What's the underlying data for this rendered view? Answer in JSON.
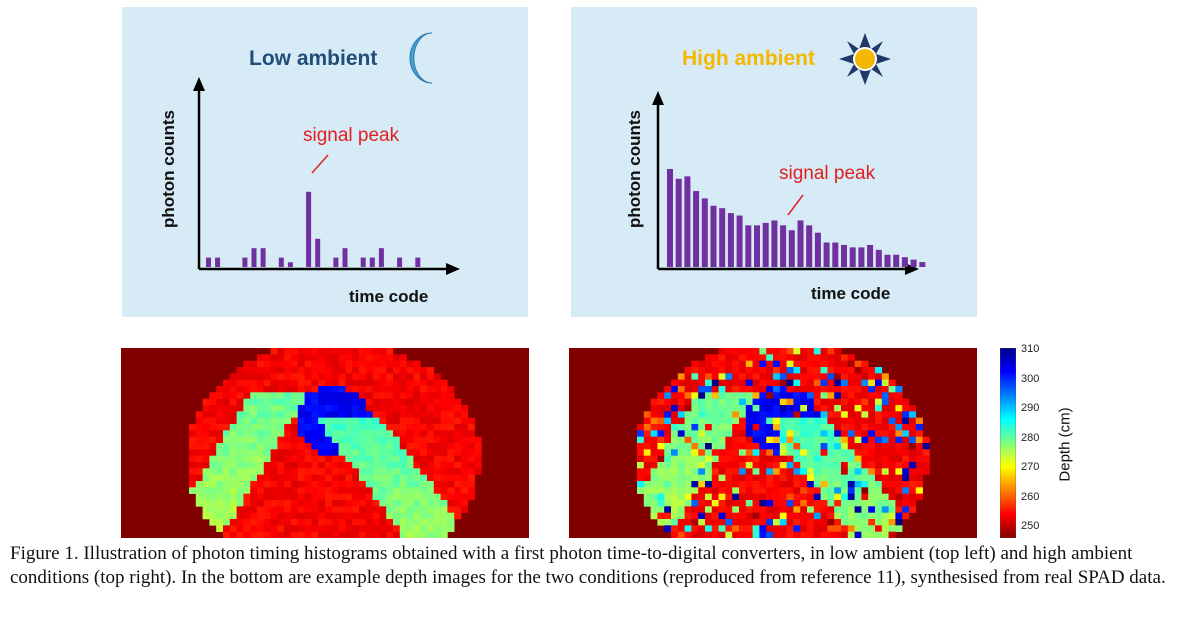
{
  "chart_data": [
    {
      "type": "bar",
      "title": "Low ambient",
      "ylabel": "photon counts",
      "xlabel": "time code",
      "annotation": "signal peak",
      "values": [
        2,
        2,
        0,
        0,
        2,
        4,
        4,
        0,
        2,
        1,
        0,
        16,
        6,
        0,
        2,
        4,
        0,
        2,
        2,
        4,
        0,
        2,
        0,
        2
      ],
      "colors": {
        "background": "#d6ebf5",
        "bars": "#7030a0",
        "title": "#1f4e79",
        "annotation": "#e02020",
        "icon": "#4a9fd1"
      }
    },
    {
      "type": "bar",
      "title": "High ambient",
      "ylabel": "photon counts",
      "xlabel": "time code",
      "annotation": "signal peak",
      "values": [
        40,
        36,
        37,
        31,
        28,
        25,
        24,
        22,
        21,
        17,
        17,
        18,
        19,
        17,
        15,
        19,
        17,
        14,
        10,
        10,
        9,
        8,
        8,
        9,
        7,
        5,
        5,
        4,
        3,
        2
      ],
      "colors": {
        "background": "#d6ebf5",
        "bars": "#7030a0",
        "title": "#f5b800",
        "annotation": "#e02020",
        "icon": "#f5b800"
      }
    },
    {
      "type": "heatmap",
      "name": "depth image low ambient",
      "colorbar_label": "Depth (cm)",
      "colorbar_ticks": [
        250,
        260,
        270,
        280,
        290,
        300,
        310
      ],
      "range": [
        250,
        310
      ]
    },
    {
      "type": "heatmap",
      "name": "depth image high ambient",
      "colorbar_label": "Depth (cm)",
      "colorbar_ticks": [
        250,
        260,
        270,
        280,
        290,
        300,
        310
      ],
      "range": [
        250,
        310
      ]
    }
  ],
  "labels": {
    "left_title": "Low ambient",
    "right_title": "High ambient",
    "ylabel": "photon counts",
    "xlabel": "time code",
    "peak": "signal peak",
    "colorbar": "Depth (cm)",
    "ticks": [
      "310",
      "300",
      "290",
      "280",
      "270",
      "260",
      "250"
    ]
  },
  "caption": "Figure 1. Illustration of photon timing histograms obtained with a first photon time-to-digital converters, in low ambient (top left) and high ambient conditions (top right). In the bottom are example depth images for the two conditions (reproduced from reference 11), synthesised from real SPAD data."
}
